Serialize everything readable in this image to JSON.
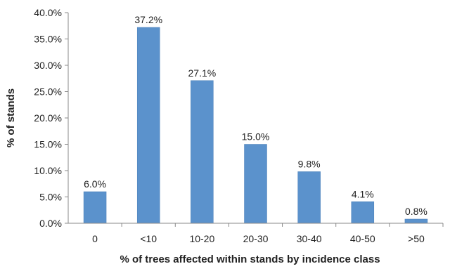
{
  "chart_data": {
    "type": "bar",
    "categories": [
      "0",
      "<10",
      "10-20",
      "20-30",
      "30-40",
      "40-50",
      ">50"
    ],
    "values": [
      6.0,
      37.2,
      27.1,
      15.0,
      9.8,
      4.1,
      0.8
    ],
    "data_labels": [
      "6.0%",
      "37.2%",
      "27.1%",
      "15.0%",
      "9.8%",
      "4.1%",
      "0.8%"
    ],
    "title": "",
    "xlabel": "% of trees affected within stands by incidence class",
    "ylabel": "% of stands",
    "ylim": [
      0,
      40
    ],
    "yticks": [
      0,
      5,
      10,
      15,
      20,
      25,
      30,
      35,
      40
    ],
    "ytick_labels": [
      "0.0%",
      "5.0%",
      "10.0%",
      "15.0%",
      "20.0%",
      "25.0%",
      "30.0%",
      "35.0%",
      "40.0%"
    ],
    "grid": false,
    "legend": "none",
    "colors": {
      "bar": "#5b92cc",
      "bar_edge": "#4a7fb8",
      "axis": "#888888"
    }
  }
}
